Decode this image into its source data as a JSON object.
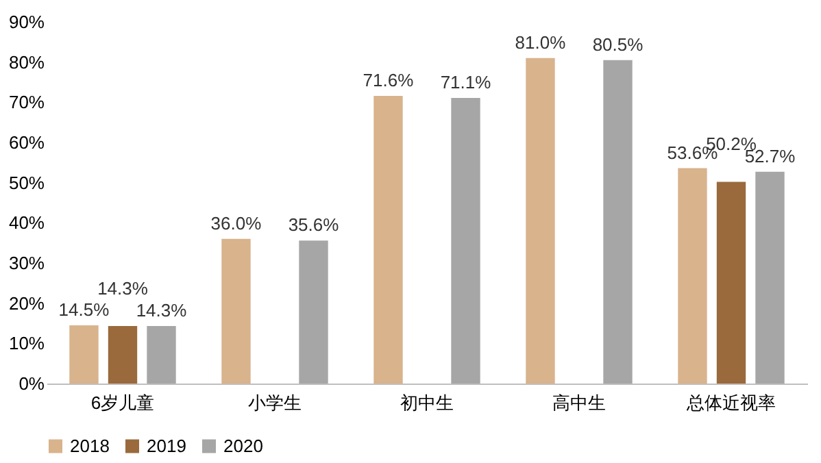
{
  "chart_data": {
    "type": "bar",
    "categories": [
      "6岁儿童",
      "小学生",
      "初中生",
      "高中生",
      "总体近视率"
    ],
    "series": [
      {
        "name": "2018",
        "color": "#d8b38c",
        "values": [
          14.5,
          36.0,
          71.6,
          81.0,
          53.6
        ],
        "value_labels": [
          "14.5%",
          "36.0%",
          "71.6%",
          "81.0%",
          "53.6%"
        ]
      },
      {
        "name": "2019",
        "color": "#9a6a3c",
        "values": [
          14.3,
          null,
          null,
          null,
          50.2
        ],
        "value_labels": [
          "14.3%",
          null,
          null,
          null,
          "50.2%"
        ]
      },
      {
        "name": "2020",
        "color": "#a6a6a6",
        "values": [
          14.3,
          35.6,
          71.1,
          80.5,
          52.7
        ],
        "value_labels": [
          "14.3%",
          "35.6%",
          "71.1%",
          "80.5%",
          "52.7%"
        ]
      }
    ],
    "ylim": [
      0,
      90
    ],
    "yticks": [
      {
        "value": 0,
        "label": "0%"
      },
      {
        "value": 10,
        "label": "10%"
      },
      {
        "value": 20,
        "label": "20%"
      },
      {
        "value": 30,
        "label": "30%"
      },
      {
        "value": 40,
        "label": "40%"
      },
      {
        "value": 50,
        "label": "50%"
      },
      {
        "value": 60,
        "label": "60%"
      },
      {
        "value": 70,
        "label": "70%"
      },
      {
        "value": 80,
        "label": "80%"
      },
      {
        "value": 90,
        "label": "90%"
      }
    ],
    "grid": false,
    "legend": "bottom"
  }
}
